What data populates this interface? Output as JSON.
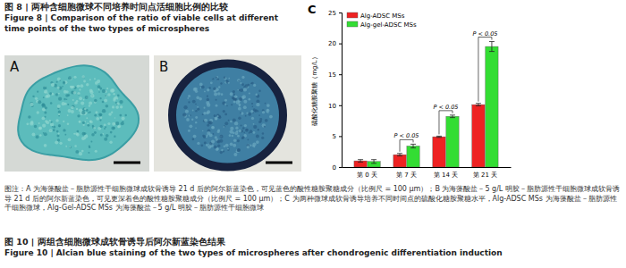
{
  "header": {
    "title_cn": "图 8 | 两种含细胞微球不同培养时间点活细胞比例的比较",
    "title_en": "Figure 8 | Comparison of the ratio of viable cells at different time points of the two types of microspheres"
  },
  "panels": [
    {
      "label": "A"
    },
    {
      "label": "B"
    },
    {
      "label": "C"
    }
  ],
  "chart_data": {
    "type": "bar",
    "y_label": "硫酸化糖胺聚糖（mg/L）",
    "categories": [
      "第 0 天",
      "第 7 天",
      "第 14 天",
      "第 21 天"
    ],
    "series": [
      {
        "name": "Alg-ADSC MSs",
        "color": "#ee2222",
        "values": [
          1.0,
          2.0,
          4.9,
          10.1
        ],
        "errors": [
          0.2,
          0.2,
          0.1,
          0.2
        ]
      },
      {
        "name": "Alg-gel-ADSC MSs",
        "color": "#33dd33",
        "values": [
          0.9,
          3.4,
          8.2,
          19.5
        ],
        "errors": [
          0.3,
          0.3,
          0.2,
          0.8
        ]
      }
    ],
    "ylim": [
      0,
      25
    ],
    "yticks": [
      0,
      5,
      10,
      15,
      20,
      25
    ],
    "legend": "top-left",
    "annotations": [
      {
        "text": "P < 0.05",
        "category": "第 7 天"
      },
      {
        "text": "P < 0.05",
        "category": "第 14 天"
      },
      {
        "text": "P < 0.05",
        "category": "第 21 天"
      }
    ]
  },
  "caption": "图注：A 为海藻酸盐－脂肪源性干细胞微球成软骨诱导 21 d 后的阿尔新蓝染色，可见蓝色的酸性糖胺聚糖成分（比例尺 = 100 μm）；B 为海藻酸盐－5 g/L 明胶－脂肪源性干细胞微球成软骨诱导 21 d 后的阿尔新蓝染色，可见更深着色的酸性糖胺聚糖成分（比例尺 = 100 μm）；C 为两种微球成软骨诱导培养不同时间点的硫酸化糖胺聚糖水平，Alg-ADSC MSs 为海藻酸盐－脂肪源性干细胞微球，Alg-Gel-ADSC MSs 为海藻酸盐－5 g/L 明胶－脂肪源性干细胞微球",
  "footer": {
    "title_cn": "图 10 | 两组含细胞微球成软骨诱导后阿尔新蓝染色结果",
    "title_en": "Figure 10 | Alcian blue staining of the two types of microspheres after chondrogenic differentiation induction"
  }
}
